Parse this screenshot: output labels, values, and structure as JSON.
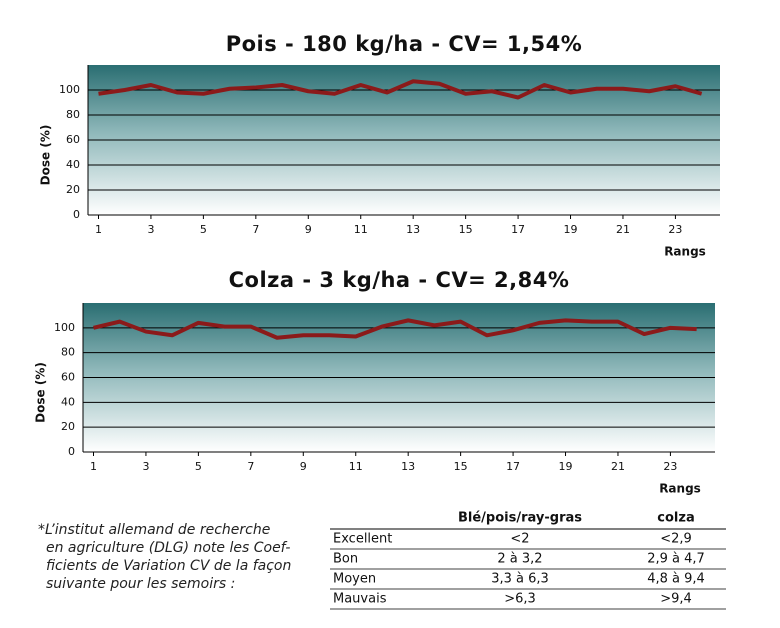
{
  "chart_data": [
    {
      "type": "line",
      "title": "Pois - 180 kg/ha - CV= 1,54%",
      "ylabel": "Dose (%)",
      "xlabel": "Rangs",
      "x": [
        1,
        2,
        3,
        4,
        5,
        6,
        7,
        8,
        9,
        10,
        11,
        12,
        13,
        14,
        15,
        16,
        17,
        18,
        19,
        20,
        21,
        22,
        23,
        24
      ],
      "series": [
        {
          "name": null,
          "color": "#8b1a1a",
          "values": [
            97,
            100,
            104,
            98,
            97,
            101,
            102,
            104,
            99,
            97,
            104,
            98,
            107,
            105,
            97,
            99,
            94,
            104,
            98,
            101,
            101,
            99,
            103,
            97
          ]
        }
      ],
      "xlim": [
        0.6,
        24.7
      ],
      "xticks": [
        1,
        3,
        5,
        7,
        9,
        11,
        13,
        15,
        17,
        19,
        21,
        23
      ],
      "ylim": [
        0,
        120
      ],
      "yticks": [
        0,
        20,
        40,
        60,
        80,
        100
      ],
      "grid": true
    },
    {
      "type": "line",
      "title": "Colza - 3 kg/ha - CV= 2,84%",
      "ylabel": "Dose (%)",
      "xlabel": "Rangs",
      "x": [
        1,
        2,
        3,
        4,
        5,
        6,
        7,
        8,
        9,
        10,
        11,
        12,
        13,
        14,
        15,
        16,
        17,
        18,
        19,
        20,
        21,
        22,
        23,
        24
      ],
      "series": [
        {
          "name": null,
          "color": "#8b1a1a",
          "values": [
            100,
            105,
            97,
            94,
            104,
            101,
            101,
            92,
            94,
            94,
            93,
            101,
            106,
            102,
            105,
            94,
            98,
            104,
            106,
            105,
            105,
            95,
            100,
            99
          ]
        }
      ],
      "xlim": [
        0.6,
        24.7
      ],
      "xticks": [
        1,
        3,
        5,
        7,
        9,
        11,
        13,
        15,
        17,
        19,
        21,
        23
      ],
      "ylim": [
        0,
        120
      ],
      "yticks": [
        0,
        20,
        40,
        60,
        80,
        100
      ],
      "grid": true
    }
  ],
  "note": [
    "*L’institut allemand de recherche",
    "en agriculture (DLG) note les Coef-",
    "ficients de Variation CV de la façon",
    "suivante pour les semoirs :"
  ],
  "table": {
    "header": [
      "Blé/pois/ray-gras",
      "colza"
    ],
    "rows": [
      [
        "Excellent",
        "<2",
        "<2,9"
      ],
      [
        "Bon",
        "2 à 3,2",
        "2,9 à 4,7"
      ],
      [
        "Moyen",
        "3,3 à 6,3",
        "4,8 à 9,4"
      ],
      [
        "Mauvais",
        ">6,3",
        ">9,4"
      ]
    ]
  }
}
